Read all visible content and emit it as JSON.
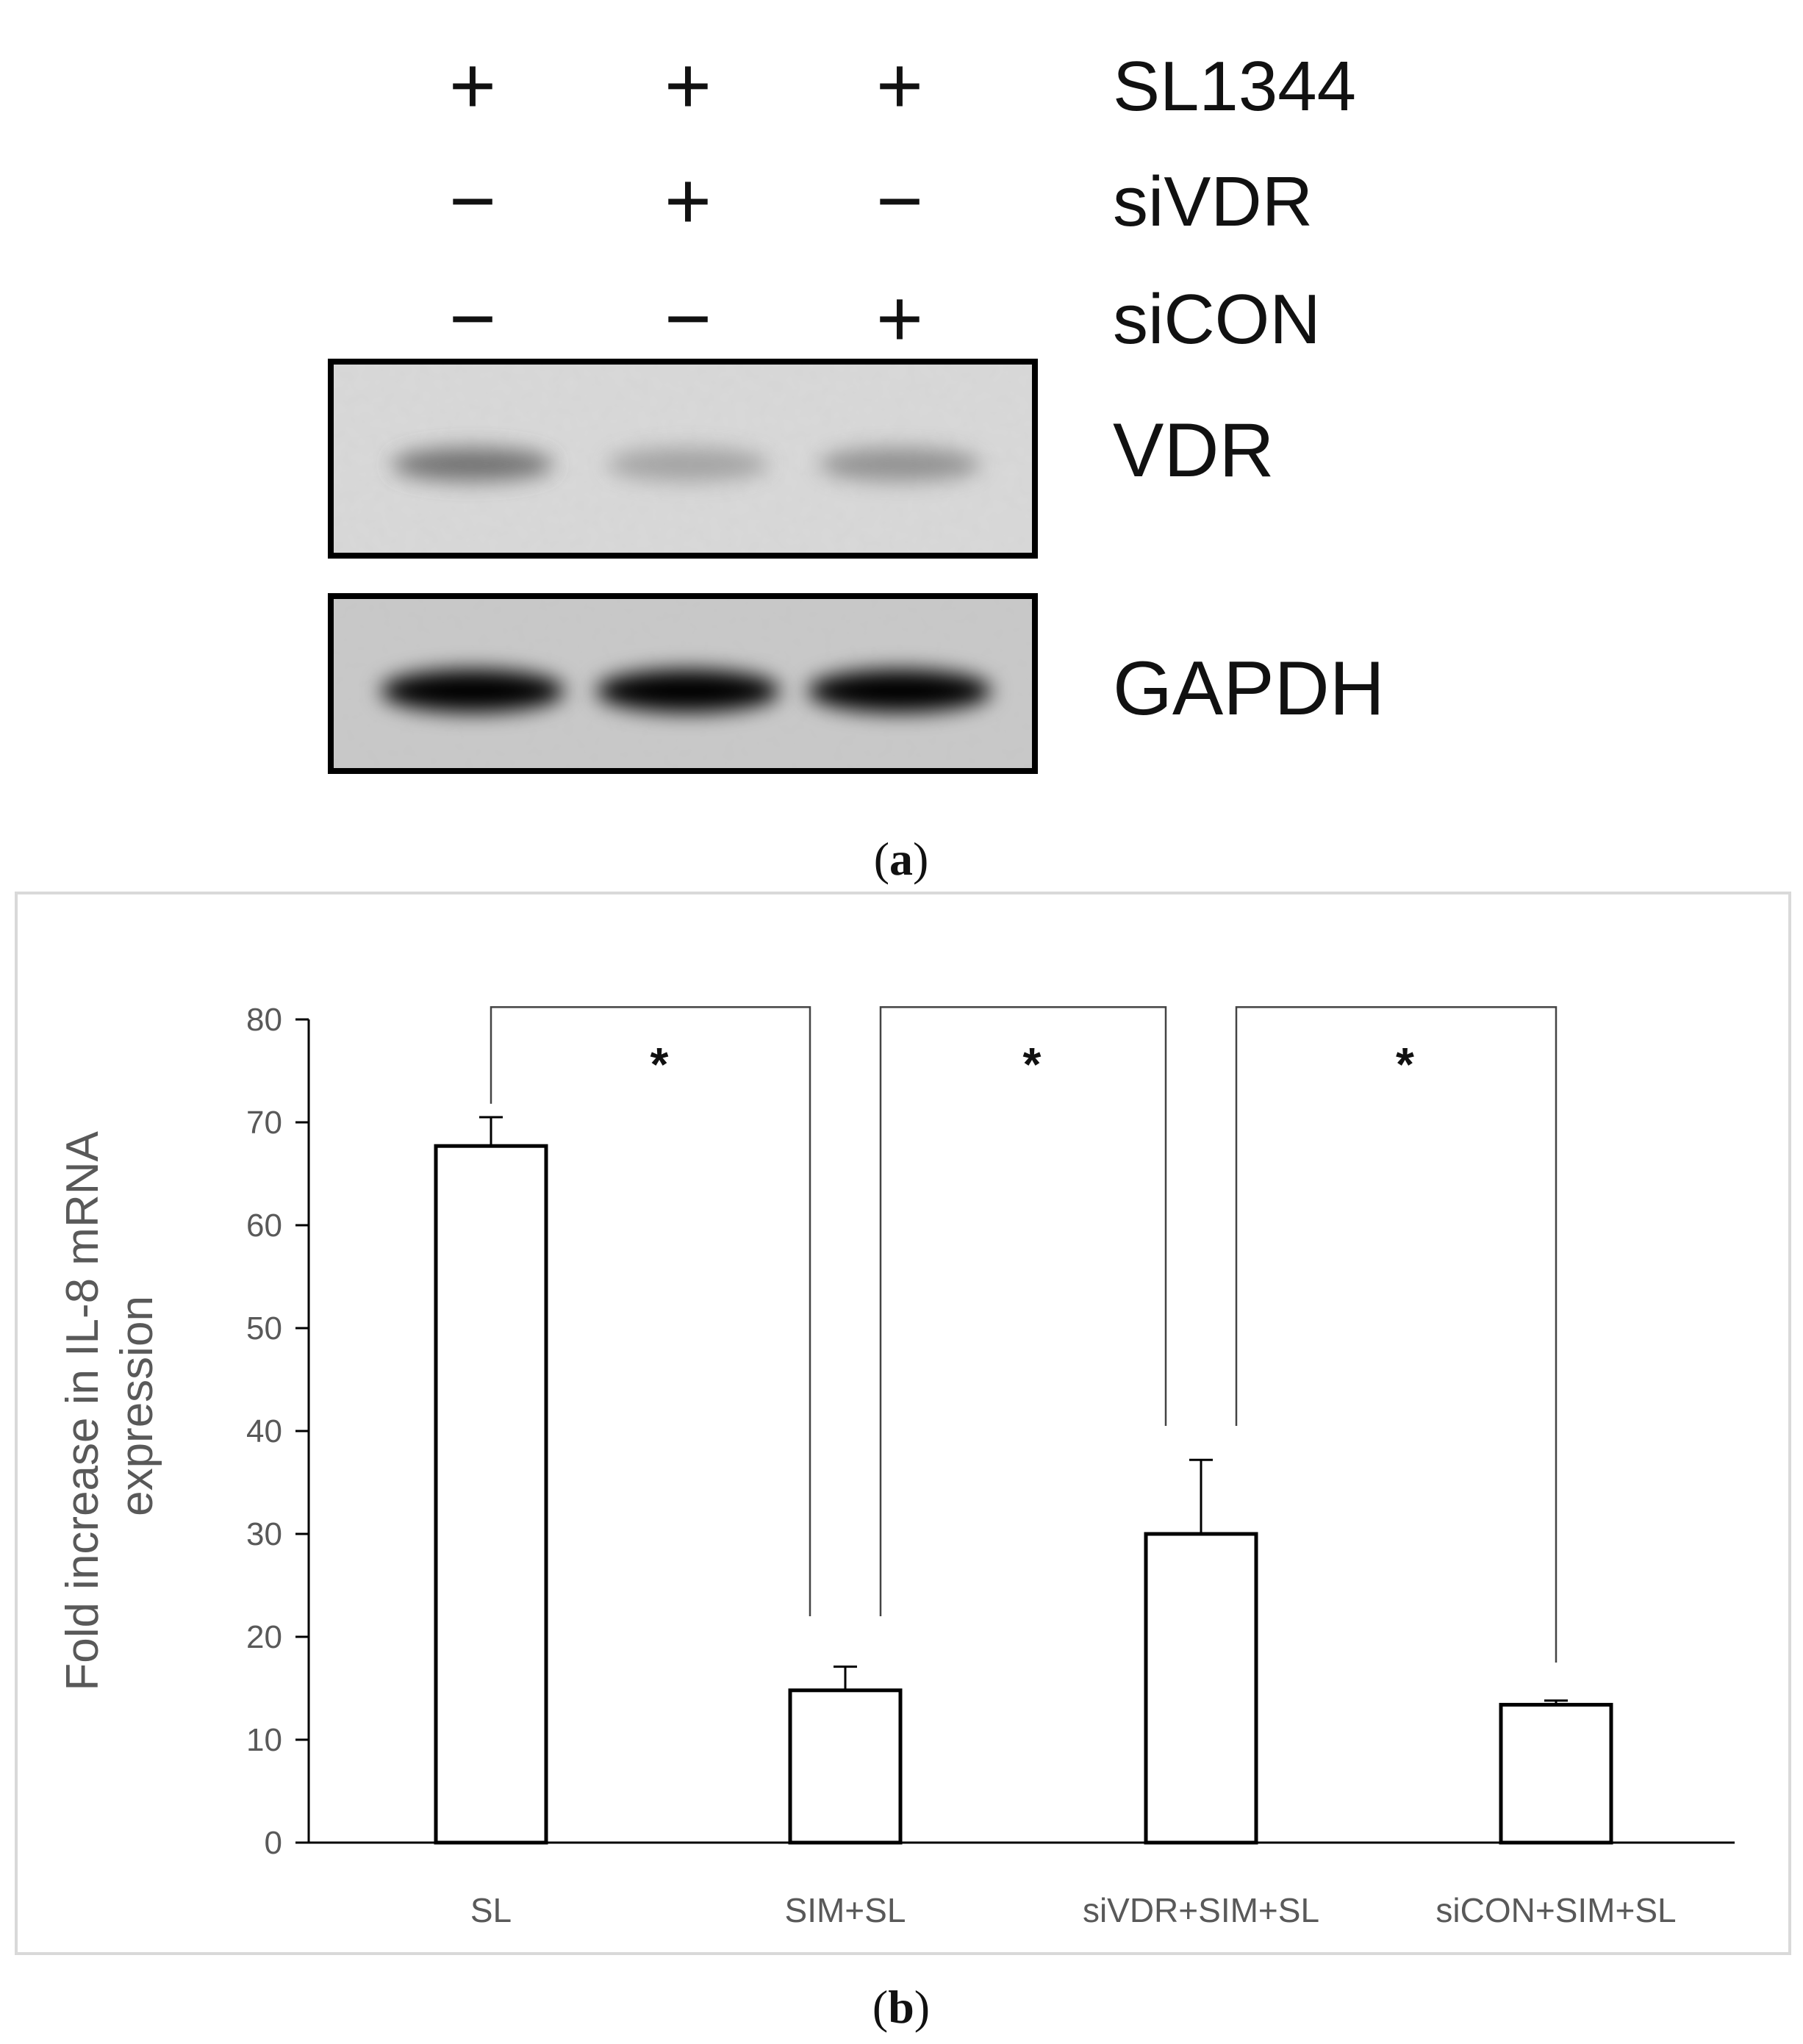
{
  "panel_a": {
    "label_open": "(",
    "label_letter": "a",
    "label_close": ")",
    "conditions": [
      {
        "name": "SL1344",
        "signs": [
          "+",
          "+",
          "+"
        ]
      },
      {
        "name": "siVDR",
        "signs": [
          "−",
          "+",
          "−"
        ]
      },
      {
        "name": "siCON",
        "signs": [
          "−",
          "−",
          "+"
        ]
      }
    ],
    "blots": [
      {
        "name": "VDR",
        "band_intensity": [
          0.55,
          0.3,
          0.4
        ]
      },
      {
        "name": "GAPDH",
        "band_intensity": [
          1.0,
          1.0,
          1.0
        ]
      }
    ]
  },
  "panel_b": {
    "label_open": "(",
    "label_letter": "b",
    "label_close": ")"
  },
  "chart_data": {
    "type": "bar",
    "categories": [
      "SL",
      "SIM+SL",
      "siVDR+SIM+SL",
      "siCON+SIM+SL"
    ],
    "values": [
      67.7,
      14.8,
      30.0,
      13.4
    ],
    "errors": [
      2.8,
      2.3,
      7.2,
      0.4
    ],
    "ylabel_line1": "Fold increase in IL-8 mRNA",
    "ylabel_line2": "expression",
    "ylim": [
      0,
      80
    ],
    "yticks": [
      0,
      10,
      20,
      30,
      40,
      50,
      60,
      70,
      80
    ],
    "bar_fill": "#ffffff",
    "bar_stroke": "#000000",
    "grid": false,
    "significance": [
      {
        "from": 0,
        "to": 1,
        "label": "*"
      },
      {
        "from": 1,
        "to": 2,
        "label": "*"
      },
      {
        "from": 2,
        "to": 3,
        "label": "*"
      }
    ]
  }
}
